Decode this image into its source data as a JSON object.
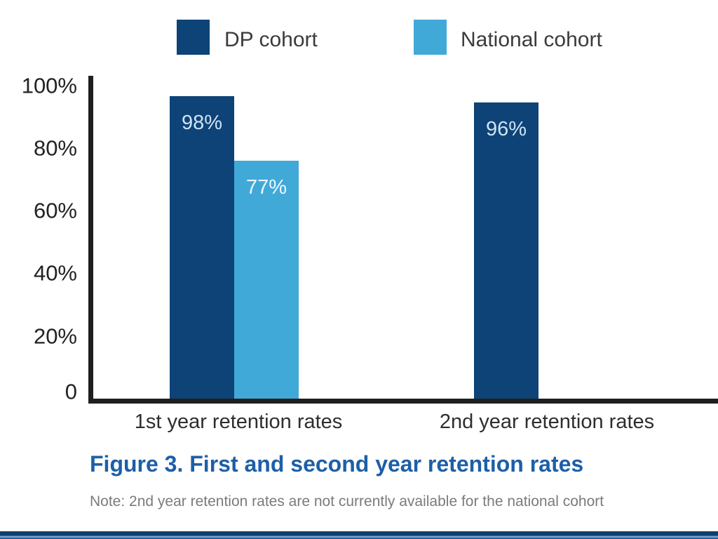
{
  "colors": {
    "dp_cohort": "#0d4377",
    "national_cohort": "#41a9d8",
    "title_blue": "#1d5fa7",
    "note_gray": "#7b7b7b",
    "legend_text": "#3b3b3b",
    "axis_black": "#1f1f1f",
    "label_on_dark_bar": "#cfe2f4",
    "label_on_light_bar": "#ecf8fd",
    "bottom_band_navy": "#0f3e6f",
    "bottom_band_light": "#7aa3cb"
  },
  "legend": [
    {
      "label": "DP cohort",
      "color": "#0d4377"
    },
    {
      "label": "National cohort",
      "color": "#41a9d8"
    }
  ],
  "chart_data": {
    "type": "bar",
    "categories": [
      "1st year retention rates",
      "2nd year retention rates"
    ],
    "series": [
      {
        "name": "DP cohort",
        "color": "#0d4377",
        "values": [
          98,
          96
        ],
        "labels": [
          "98%",
          "96%"
        ],
        "label_color": "#cfe2f4"
      },
      {
        "name": "National cohort",
        "color": "#41a9d8",
        "values": [
          77,
          null
        ],
        "labels": [
          "77%",
          null
        ],
        "label_color": "#ecf8fd"
      }
    ],
    "ylim": [
      0,
      100
    ],
    "y_ticks": [
      "100%",
      "80%",
      "60%",
      "40%",
      "20%",
      "0"
    ],
    "grid": false,
    "legend_position": "top",
    "data_labels_position": "inside-top"
  },
  "caption": {
    "title": "Figure 3. First and second year retention rates",
    "note": "Note: 2nd year retention rates are not currently available for the national cohort"
  }
}
